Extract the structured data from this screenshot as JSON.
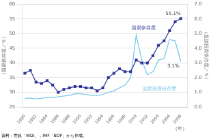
{
  "chart_data": {
    "type": "line",
    "x": [
      1980,
      1981,
      1982,
      1983,
      1984,
      1985,
      1986,
      1987,
      1988,
      1989,
      1990,
      1991,
      1992,
      1993,
      1994,
      1995,
      1996,
      1997,
      1998,
      1999,
      2000,
      2001,
      2002,
      2003,
      2004,
      2005,
      2006,
      2007,
      2008
    ],
    "series": [
      {
        "name": "貿易依存度",
        "color": "#2e3596",
        "marker": "square",
        "values": [
          36.5,
          37.5,
          33.5,
          33.0,
          34.0,
          32.5,
          30.0,
          31.0,
          31.5,
          32.0,
          32.0,
          31.5,
          31.5,
          30.5,
          31.5,
          35.0,
          36.5,
          38.0,
          37.0,
          37.0,
          41.0,
          40.0,
          40.0,
          42.5,
          46.0,
          47.5,
          51.0,
          54.0,
          55.1
        ]
      },
      {
        "name": "直接投資依存度",
        "color": "#6ec6e6",
        "marker": "none",
        "axis": "y2",
        "values": [
          0.6,
          0.6,
          0.55,
          0.6,
          0.65,
          0.65,
          0.7,
          0.75,
          0.8,
          0.9,
          0.9,
          0.85,
          0.8,
          0.8,
          0.85,
          1.0,
          1.1,
          1.3,
          1.5,
          2.0,
          4.9,
          3.2,
          2.2,
          2.4,
          3.2,
          3.3,
          4.6,
          4.5,
          3.1
        ]
      }
    ],
    "xlabel": "（年）",
    "ylabel": "（貿易依存度／％）",
    "y2label": "（直接投資依存度／％）",
    "source": "資料：世銀「WDI」，IMF「BOP」から作成。",
    "xlim": [
      1979.5,
      2009.2
    ],
    "xticks": [
      1980,
      1982,
      1984,
      1986,
      1988,
      1990,
      1992,
      1994,
      1996,
      1998,
      2000,
      2002,
      2004,
      2006,
      2008
    ],
    "ylim": [
      25,
      60
    ],
    "yticks": [
      25,
      30,
      35,
      40,
      45,
      50,
      55,
      60
    ],
    "y2lim": [
      0.0,
      7.0
    ],
    "y2ticks": [
      {
        "value": 0,
        "label": "0.0"
      },
      {
        "value": 1,
        "label": "1.0"
      },
      {
        "value": 2,
        "label": "2.0"
      },
      {
        "value": 3,
        "label": "3.0"
      },
      {
        "value": 4,
        "label": "4.0"
      },
      {
        "value": 5,
        "label": "5.0"
      },
      {
        "value": 6,
        "label": "6.0"
      },
      {
        "value": 7,
        "label": "7.0"
      }
    ],
    "annotations": [
      {
        "text": "55.1%",
        "x": 2008,
        "y": 55.1,
        "axis": "y"
      },
      {
        "text": "3.1%",
        "x": 2008,
        "y": 3.1,
        "axis": "y2"
      }
    ],
    "grid": true
  }
}
